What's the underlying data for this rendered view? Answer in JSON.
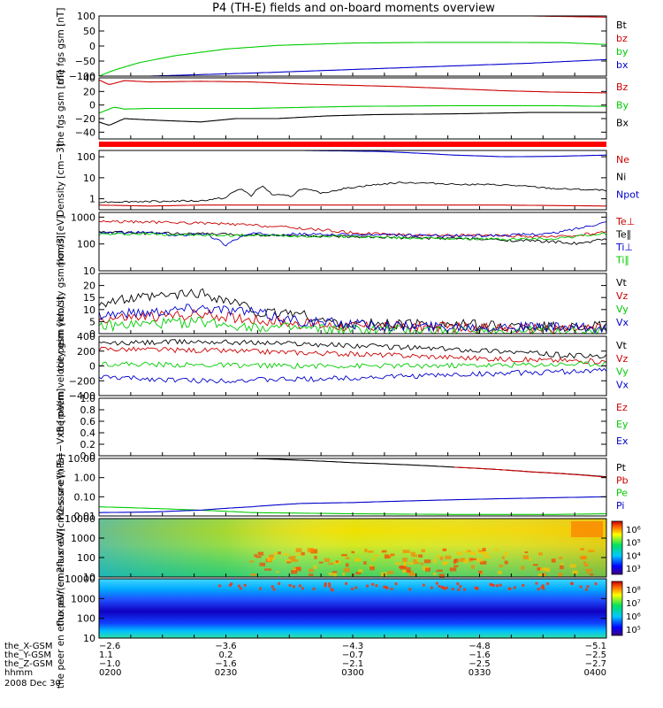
{
  "title": "P4 (TH-E) fields and on-board moments overview",
  "colors": {
    "black": "#000000",
    "red": "#cc0000",
    "green": "#00cc00",
    "blue": "#0000cc",
    "flag_red": "#ff0000"
  },
  "chart_data": [
    {
      "type": "line",
      "ylabel": "the fgs gsm [nT]",
      "ylim": [
        -100,
        100
      ],
      "ticks": [
        "100",
        "50",
        "0",
        "−50",
        "−100"
      ],
      "legend": [
        "Bt",
        "bz",
        "by",
        "bx"
      ],
      "series": [
        {
          "name": "Bt",
          "color": "red",
          "x": [
            0.85,
            1.0
          ],
          "values": [
            100,
            96
          ]
        },
        {
          "name": "by",
          "color": "green",
          "x": [
            0,
            0.03,
            0.08,
            0.15,
            0.25,
            0.35,
            0.5,
            0.65,
            0.8,
            0.92,
            1.0
          ],
          "values": [
            -100,
            -80,
            -55,
            -32,
            -10,
            2,
            10,
            12,
            12,
            11,
            5
          ]
        },
        {
          "name": "bx",
          "color": "blue",
          "x": [
            0.1,
            0.3,
            0.5,
            0.7,
            0.85,
            1.0
          ],
          "values": [
            -100,
            -90,
            -78,
            -66,
            -57,
            -45
          ]
        }
      ]
    },
    {
      "type": "line",
      "ylabel": "the fgs gsm [nT]",
      "ylim": [
        -50,
        40
      ],
      "ticks": [
        "40",
        "20",
        "0",
        "−20",
        "−40"
      ],
      "legend": [
        "Bz",
        "By",
        "Bx"
      ],
      "series": [
        {
          "name": "Bz",
          "color": "red",
          "x": [
            0,
            0.02,
            0.05,
            0.1,
            0.2,
            0.3,
            0.4,
            0.5,
            0.6,
            0.7,
            0.8,
            0.9,
            1.0
          ],
          "values": [
            37,
            30,
            36,
            34,
            35,
            34,
            31,
            29,
            27,
            24,
            21,
            19,
            18
          ]
        },
        {
          "name": "By",
          "color": "green",
          "x": [
            0,
            0.03,
            0.05,
            0.1,
            0.2,
            0.3,
            0.5,
            0.7,
            0.9,
            1.0
          ],
          "values": [
            -12,
            -3,
            -6,
            -5,
            -5,
            -5,
            -2,
            -1,
            -1,
            -2
          ]
        },
        {
          "name": "Bx",
          "color": "black",
          "x": [
            0,
            0.02,
            0.05,
            0.1,
            0.2,
            0.27,
            0.35,
            0.45,
            0.55,
            0.7,
            0.85,
            1.0
          ],
          "values": [
            -25,
            -30,
            -20,
            -22,
            -25,
            -20,
            -20,
            -16,
            -14,
            -13,
            -11,
            -11
          ]
        }
      ]
    },
    {
      "type": "line",
      "ylabel": "Density [cm−3]",
      "yscale": "log",
      "ylim": [
        0.3,
        200
      ],
      "ticks": [
        "100",
        "10",
        "1"
      ],
      "legend": [
        "Ne",
        "Ni",
        "Npot"
      ],
      "series": [
        {
          "name": "Ne",
          "color": "red",
          "x": [
            0,
            0.1,
            0.2,
            0.4,
            0.6,
            0.8,
            1.0
          ],
          "values": [
            0.5,
            0.45,
            0.5,
            0.5,
            0.5,
            0.5,
            0.45
          ]
        },
        {
          "name": "Ni",
          "color": "black",
          "x": [
            0,
            0.1,
            0.2,
            0.25,
            0.28,
            0.3,
            0.32,
            0.34,
            0.38,
            0.4,
            0.44,
            0.5,
            0.6,
            0.7,
            0.8,
            0.9,
            1.0
          ],
          "values": [
            0.7,
            0.75,
            0.8,
            1.1,
            3,
            1.2,
            4,
            1.6,
            1.3,
            3,
            1.8,
            3.5,
            6,
            5,
            4.5,
            3,
            2.5
          ]
        },
        {
          "name": "Npot",
          "color": "blue",
          "x": [
            0.4,
            0.55,
            0.7,
            0.8,
            0.9,
            1.0
          ],
          "values": [
            200,
            180,
            120,
            100,
            105,
            120
          ]
        }
      ]
    },
    {
      "type": "line",
      "ylabel": "mom3 [eV]",
      "yscale": "log",
      "ylim": [
        10,
        1500
      ],
      "ticks": [
        "1000",
        "100",
        "10"
      ],
      "legend": [
        "Te⊥",
        "Te∥",
        "Ti⊥",
        "Ti∥"
      ],
      "series": [
        {
          "name": "Te⊥",
          "color": "red",
          "x": [
            0,
            0.1,
            0.2,
            0.3,
            0.4,
            0.5,
            0.6,
            0.7,
            0.8,
            0.9,
            0.95,
            1.0
          ],
          "values": [
            700,
            650,
            600,
            500,
            380,
            260,
            220,
            210,
            200,
            180,
            220,
            280
          ]
        },
        {
          "name": "Te∥",
          "color": "black",
          "x": [
            0,
            0.1,
            0.2,
            0.3,
            0.4,
            0.5,
            0.6,
            0.7,
            0.8,
            0.9,
            0.95,
            1.0
          ],
          "values": [
            280,
            250,
            240,
            220,
            200,
            180,
            170,
            160,
            140,
            120,
            100,
            160
          ]
        },
        {
          "name": "Ti⊥",
          "color": "blue",
          "x": [
            0,
            0.1,
            0.15,
            0.2,
            0.25,
            0.3,
            0.4,
            0.5,
            0.6,
            0.7,
            0.8,
            0.9,
            0.95,
            1.0
          ],
          "values": [
            250,
            270,
            200,
            250,
            90,
            240,
            230,
            220,
            210,
            200,
            210,
            250,
            400,
            650
          ]
        },
        {
          "name": "Ti∥",
          "color": "green",
          "x": [
            0,
            0.1,
            0.2,
            0.3,
            0.4,
            0.5,
            0.6,
            0.7,
            0.8,
            0.9,
            1.0
          ],
          "values": [
            230,
            240,
            210,
            210,
            200,
            190,
            170,
            160,
            150,
            160,
            240
          ]
        }
      ]
    },
    {
      "type": "line",
      "ylabel": "the peim velocity gsm [km/s]",
      "ylim": [
        0,
        25
      ],
      "ticks": [
        "20",
        "15",
        "10",
        "5",
        "0"
      ],
      "legend": [
        "Vt",
        "Vz",
        "Vy",
        "Vx"
      ],
      "series": [
        {
          "name": "Vt",
          "color": "black",
          "x": [
            0,
            0.1,
            0.2,
            0.28,
            0.32,
            0.38,
            0.45,
            0.5,
            0.6,
            0.7,
            0.8,
            0.9,
            1.0
          ],
          "values": [
            13,
            15,
            17,
            12,
            8,
            9,
            5,
            4,
            4,
            4,
            3,
            3,
            3
          ]
        },
        {
          "name": "Vz",
          "color": "red",
          "x": [
            0,
            0.1,
            0.2,
            0.3,
            0.4,
            0.5,
            0.6,
            0.8,
            1.0
          ],
          "values": [
            6,
            7,
            8,
            6,
            4,
            3,
            3,
            2,
            2
          ]
        },
        {
          "name": "Vy",
          "color": "green",
          "x": [
            0,
            0.1,
            0.2,
            0.3,
            0.4,
            0.5,
            0.6,
            0.8,
            1.0
          ],
          "values": [
            3,
            4,
            5,
            3,
            2,
            1.5,
            1.5,
            1,
            1
          ]
        },
        {
          "name": "Vx",
          "color": "blue",
          "x": [
            0,
            0.1,
            0.2,
            0.3,
            0.4,
            0.5,
            0.6,
            0.8,
            1.0
          ],
          "values": [
            8,
            9,
            11,
            9,
            5,
            4,
            3,
            3,
            2
          ]
        }
      ]
    },
    {
      "type": "line",
      "ylabel": "the peem velocity gsm [km/s]",
      "ylim": [
        -400,
        400
      ],
      "ticks": [
        "400",
        "200",
        "0",
        "−200",
        "−400"
      ],
      "legend": [
        "Vt",
        "Vz",
        "Vy",
        "Vx"
      ],
      "series": [
        {
          "name": "Vt",
          "color": "black",
          "x": [
            0,
            0.2,
            0.4,
            0.6,
            0.8,
            0.9,
            1.0
          ],
          "values": [
            300,
            330,
            300,
            250,
            200,
            150,
            120
          ]
        },
        {
          "name": "Vz",
          "color": "red",
          "x": [
            0,
            0.2,
            0.4,
            0.6,
            0.8,
            1.0
          ],
          "values": [
            230,
            210,
            180,
            140,
            90,
            60
          ]
        },
        {
          "name": "Vy",
          "color": "green",
          "x": [
            0,
            0.2,
            0.4,
            0.6,
            0.8,
            1.0
          ],
          "values": [
            30,
            10,
            0,
            0,
            10,
            30
          ]
        },
        {
          "name": "Vx",
          "color": "blue",
          "x": [
            0,
            0.2,
            0.4,
            0.6,
            0.8,
            1.0
          ],
          "values": [
            -150,
            -200,
            -180,
            -140,
            -100,
            -60
          ]
        }
      ]
    },
    {
      "type": "line",
      "ylabel": "E=−VxB [mV/m]",
      "ylim": [
        0,
        1
      ],
      "ticks": [
        "1.0",
        "0.8",
        "0.6",
        "0.4",
        "0.2",
        "0.0"
      ],
      "legend": [
        "Ez",
        "Ey",
        "Ex"
      ],
      "series": []
    },
    {
      "type": "line",
      "ylabel": "Pressure [nPa]",
      "yscale": "log",
      "ylim": [
        0.01,
        10
      ],
      "ticks": [
        "10.00",
        "1.00",
        "0.10",
        "0.01"
      ],
      "legend": [
        "Pt",
        "Pb",
        "Pe",
        "Pi"
      ],
      "series": [
        {
          "name": "Pt",
          "color": "black",
          "x": [
            0.3,
            0.5,
            0.7,
            0.85,
            1.0
          ],
          "values": [
            10,
            6,
            3.5,
            2,
            1.1
          ]
        },
        {
          "name": "Pb",
          "color": "red",
          "x": [
            0.7,
            0.85,
            1.0
          ],
          "values": [
            3.5,
            2,
            1.05
          ]
        },
        {
          "name": "Pe",
          "color": "green",
          "x": [
            0,
            0.1,
            0.2,
            0.3,
            0.5,
            0.7,
            0.9,
            1.0
          ],
          "values": [
            0.03,
            0.025,
            0.02,
            0.015,
            0.013,
            0.012,
            0.012,
            0.013
          ]
        },
        {
          "name": "Pi",
          "color": "blue",
          "x": [
            0,
            0.1,
            0.2,
            0.3,
            0.4,
            0.5,
            0.6,
            0.7,
            0.8,
            0.9,
            1.0
          ],
          "values": [
            0.015,
            0.016,
            0.02,
            0.03,
            0.045,
            0.05,
            0.06,
            0.07,
            0.08,
            0.09,
            0.1
          ]
        }
      ]
    },
    {
      "type": "heatmap",
      "ylabel": "the peir en eflux eV/(cm2-s-sr-eV)",
      "yscale": "log",
      "ylim": [
        10,
        10000
      ],
      "ticks": [
        "10000",
        "1000",
        "100",
        "10"
      ],
      "colorbar": {
        "ticks": [
          "10⁶",
          "10⁵",
          "10⁴",
          "10³"
        ]
      }
    },
    {
      "type": "heatmap",
      "ylabel": "the peer en eflux eV/(cm2-s-sr-eV)",
      "yscale": "log",
      "ylim": [
        10,
        10000
      ],
      "ticks": [
        "10000",
        "1000",
        "100",
        "10"
      ],
      "colorbar": {
        "ticks": [
          "10⁸",
          "10⁷",
          "10⁶",
          "10⁵"
        ]
      }
    }
  ],
  "footer": {
    "rows": [
      {
        "label": "the_X-GSM",
        "values": [
          "−2.6",
          "−3.6",
          "−4.3",
          "−4.8",
          "−5.1"
        ]
      },
      {
        "label": "the_Y-GSM",
        "values": [
          "1.1",
          "0.2",
          "−0.7",
          "−1.6",
          "−2.5"
        ]
      },
      {
        "label": "the_Z-GSM",
        "values": [
          "−1.0",
          "−1.6",
          "−2.1",
          "−2.5",
          "−2.7"
        ]
      },
      {
        "label": "hhmm",
        "values": [
          "0200",
          "0230",
          "0300",
          "0330",
          "0400"
        ]
      }
    ],
    "date": "2008 Dec 30"
  }
}
